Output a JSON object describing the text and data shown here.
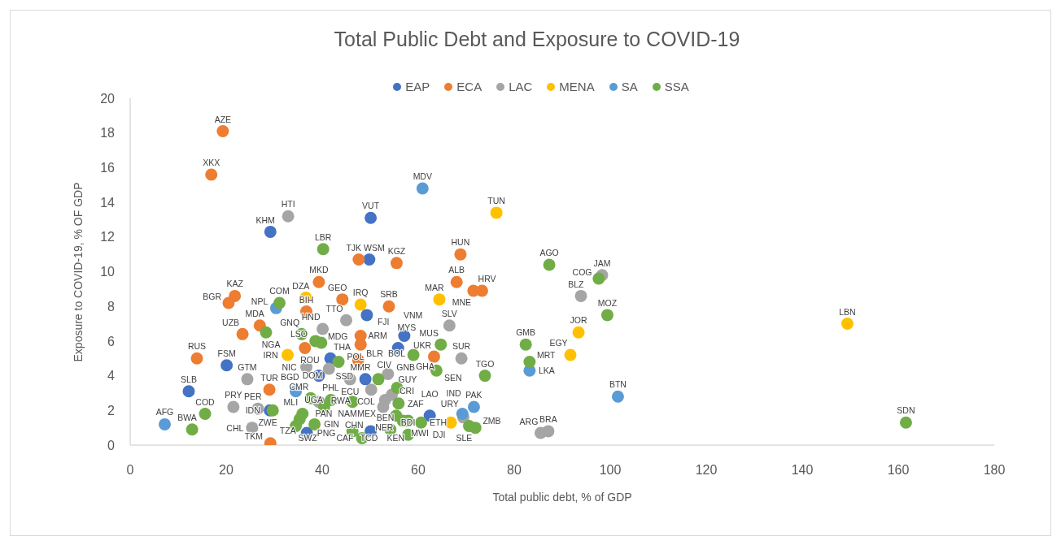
{
  "chart_data": {
    "type": "scatter",
    "title": "Total Public Debt and Exposure to COVID-19",
    "xlabel": "Total public debt, % of GDP",
    "ylabel": "Exposure to COVID-19, % OF GDP",
    "xlim": [
      0,
      180
    ],
    "ylim": [
      0,
      20
    ],
    "xticks": [
      0,
      20,
      40,
      60,
      80,
      100,
      120,
      140,
      160,
      180
    ],
    "yticks": [
      0,
      2,
      4,
      6,
      8,
      10,
      12,
      14,
      16,
      18,
      20
    ],
    "legend": "top",
    "marker": "circle",
    "series": [
      {
        "name": "EAP",
        "color": "#4472c4",
        "x": [
          29.2,
          50.1,
          49.8,
          49.3,
          57.1,
          55.8,
          41.7,
          39.3,
          49.0,
          62.4,
          50.1,
          36.8,
          29.1,
          12.2,
          20.1
        ],
        "values": [
          12.3,
          13.1,
          10.7,
          7.5,
          6.3,
          5.6,
          5.0,
          4.0,
          3.8,
          1.7,
          0.8,
          0.7,
          2.0,
          3.1,
          4.6
        ],
        "value_labels": [
          "KHM",
          "VUT",
          "WSM",
          "FJI",
          "VNM",
          "MYS",
          "THA",
          "PHL",
          "MMR",
          "LAO",
          "CHN",
          "PNG",
          "IDN",
          "SLB",
          "FSM"
        ]
      },
      {
        "name": "ECA",
        "color": "#ed7d31",
        "x": [
          19.3,
          16.9,
          21.8,
          20.5,
          23.4,
          27.0,
          13.9,
          39.3,
          36.7,
          44.2,
          53.9,
          48.0,
          48.0,
          47.5,
          36.4,
          29.0,
          29.2,
          47.6,
          55.5,
          68.8,
          68.0,
          71.5,
          73.3,
          63.3
        ],
        "values": [
          18.1,
          15.6,
          8.6,
          8.2,
          6.4,
          6.9,
          5.0,
          9.4,
          7.7,
          8.4,
          8.0,
          6.3,
          5.8,
          4.9,
          5.6,
          3.2,
          0.1,
          10.7,
          10.5,
          11.0,
          9.4,
          8.9,
          8.9,
          5.1
        ],
        "value_labels": [
          "AZE",
          "XKX",
          "KAZ",
          "BGR",
          "UZB",
          "MDA",
          "RUS",
          "MKD",
          "BIH",
          "GEO",
          "SRB",
          "ARM",
          "POL",
          "BLR",
          "ROU",
          "TUR",
          "TKM",
          "TJK",
          "KGZ",
          "HUN",
          "ALB",
          "MNE",
          "HRV",
          "UKR"
        ]
      },
      {
        "name": "LAC",
        "color": "#a5a5a5",
        "x": [
          32.9,
          24.4,
          21.5,
          26.6,
          25.4,
          45.0,
          40.1,
          36.7,
          41.4,
          45.8,
          50.2,
          53.7,
          53.1,
          52.7,
          54.5,
          39.3,
          66.5,
          69.0,
          69.4,
          98.3,
          93.9,
          85.5,
          87.1
        ],
        "values": [
          13.2,
          3.8,
          2.2,
          2.1,
          1.0,
          7.2,
          6.7,
          4.5,
          4.4,
          3.8,
          3.2,
          4.1,
          2.6,
          2.2,
          2.9,
          2.5,
          6.9,
          5.0,
          1.6,
          9.8,
          8.6,
          0.7,
          0.8
        ],
        "value_labels": [
          "HTI",
          "GTM",
          "PRY",
          "PER",
          "CHL",
          "TTO",
          "HND",
          "NIC",
          "DOM",
          "ECU",
          "COL",
          "BOL",
          "CRI",
          "MEX",
          "GUY",
          "PAN",
          "SLV",
          "SUR",
          "URY",
          "JAM",
          "BLZ",
          "ARG",
          "BRA"
        ]
      },
      {
        "name": "MENA",
        "color": "#ffc000",
        "x": [
          36.6,
          48.0,
          64.4,
          76.3,
          32.8,
          93.4,
          91.7,
          149.4,
          66.8
        ],
        "values": [
          8.5,
          8.1,
          8.4,
          13.4,
          5.2,
          6.5,
          5.2,
          7.0,
          1.3
        ],
        "value_labels": [
          "DZA",
          "IRQ",
          "MAR",
          "TUN",
          "IRN",
          "JOR",
          "EGY",
          "LBN",
          "DJI"
        ]
      },
      {
        "name": "SA",
        "color": "#5b9bd5",
        "x": [
          60.9,
          30.4,
          7.2,
          34.5,
          83.2,
          101.6,
          71.6,
          69.2
        ],
        "values": [
          14.8,
          7.9,
          1.2,
          3.1,
          4.3,
          2.8,
          2.2,
          1.8
        ],
        "value_labels": [
          "MDV",
          "NPL",
          "AFG",
          "BGD",
          "LKA",
          "BTN",
          "PAK",
          "IND"
        ]
      },
      {
        "name": "SSA",
        "color": "#70ad47",
        "x": [
          40.2,
          31.1,
          28.3,
          35.7,
          38.6,
          39.8,
          43.4,
          87.3,
          97.6,
          99.4,
          82.4,
          83.2,
          64.7,
          63.8,
          59.0,
          73.9,
          37.6,
          41.8,
          40.4,
          46.3,
          35.9,
          35.3,
          34.5,
          38.4,
          46.3,
          48.3,
          54.2,
          55.4,
          55.6,
          55.9,
          56.8,
          57.9,
          60.6,
          57.9,
          51.7,
          70.6,
          71.9,
          15.6,
          12.9,
          29.7,
          161.6
        ],
        "values": [
          11.3,
          8.2,
          6.5,
          6.4,
          6.0,
          5.9,
          4.8,
          10.4,
          9.6,
          7.5,
          5.8,
          4.8,
          5.8,
          4.3,
          5.2,
          4.0,
          2.7,
          2.6,
          2.2,
          2.5,
          1.8,
          1.5,
          1.1,
          1.2,
          0.8,
          0.4,
          0.9,
          1.7,
          3.3,
          2.4,
          1.4,
          1.4,
          1.3,
          0.6,
          3.8,
          1.1,
          1.0,
          1.8,
          0.9,
          2.0,
          1.3
        ],
        "value_labels": [
          "LBR",
          "COM",
          "NGA",
          "GNQ",
          "LSO",
          "MDG",
          "SSD",
          "AGO",
          "COG",
          "MOZ",
          "GMB",
          "MRT",
          "MUS",
          "SEN",
          "GHA",
          "TGO",
          "CMR",
          "UGA",
          "RWA",
          "NAM",
          "MLI",
          "TZA",
          "SWZ",
          "GIN",
          "TCD",
          "CAF",
          "BEN",
          "NER",
          "GNB",
          "ZAF",
          "KEN",
          "MWI",
          "ETH",
          "BDI",
          "CIV",
          "SLE",
          "ZMB",
          "COD",
          "BWA",
          "ZWE",
          "SDN"
        ]
      }
    ]
  }
}
